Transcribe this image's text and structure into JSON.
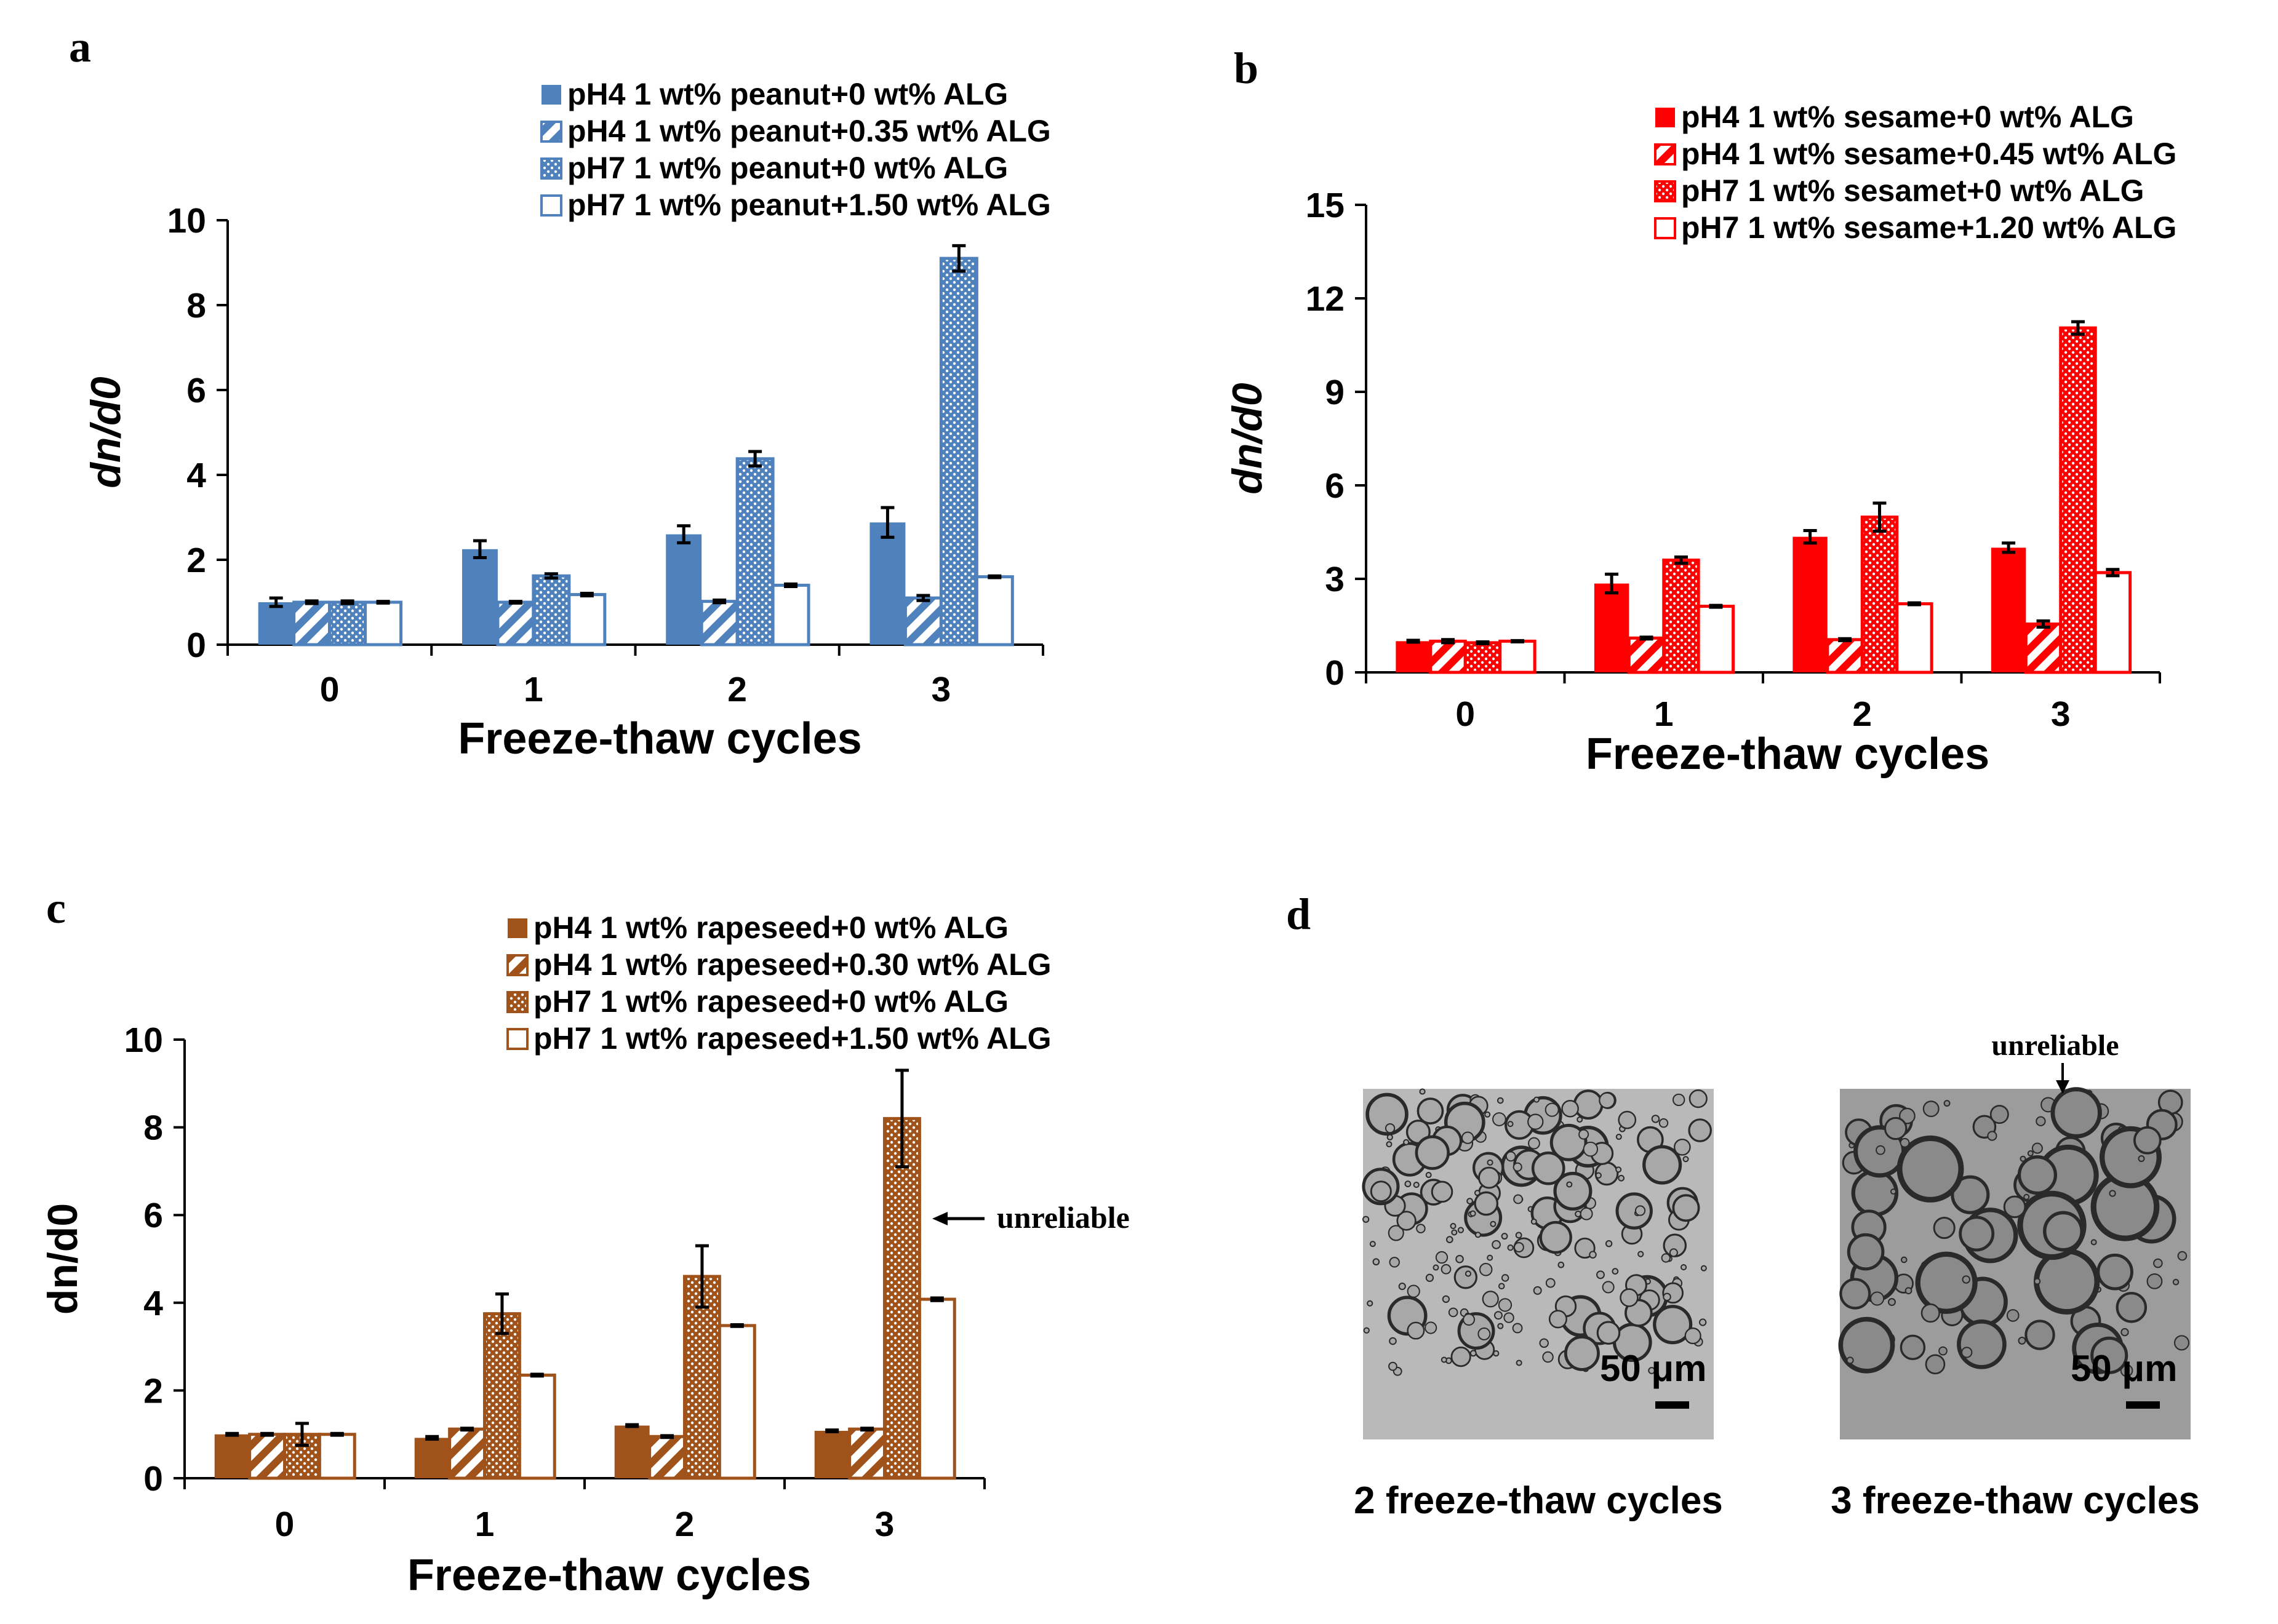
{
  "chart_data": [
    {
      "panel": "a",
      "type": "bar",
      "title": "",
      "xlabel": "Freeze-thaw  cycles",
      "ylabel": "dn/d0",
      "ylim": [
        0,
        10
      ],
      "yticks": [
        "0",
        "2",
        "4",
        "6",
        "8",
        "10"
      ],
      "categories": [
        "0",
        "1",
        "2",
        "3"
      ],
      "color": "#4f81bd",
      "series": [
        {
          "name": "pH4 1 wt% peanut+0 wt% ALG",
          "pattern": "solid",
          "values": [
            1.0,
            2.25,
            2.6,
            2.88
          ],
          "errors": [
            0.1,
            0.2,
            0.2,
            0.35
          ]
        },
        {
          "name": "pH4 1 wt% peanut+0.35 wt% ALG",
          "pattern": "diag",
          "values": [
            1.0,
            1.0,
            1.02,
            1.1
          ],
          "errors": [
            0.03,
            0.02,
            0.03,
            0.06
          ]
        },
        {
          "name": "pH7 1 wt% peanut+0 wt% ALG",
          "pattern": "dots",
          "values": [
            1.0,
            1.62,
            4.38,
            9.1
          ],
          "errors": [
            0.03,
            0.05,
            0.17,
            0.3
          ]
        },
        {
          "name": "pH7 1 wt% peanut+1.50 wt% ALG",
          "pattern": "hollow",
          "values": [
            1.0,
            1.18,
            1.4,
            1.6
          ],
          "errors": [
            0.02,
            0.03,
            0.03,
            0.02
          ]
        }
      ]
    },
    {
      "panel": "b",
      "type": "bar",
      "title": "",
      "xlabel": "Freeze-thaw  cycles",
      "ylabel": "dn/d0",
      "ylim": [
        0,
        15
      ],
      "yticks": [
        "0",
        "3",
        "6",
        "9",
        "12",
        "15"
      ],
      "categories": [
        "0",
        "1",
        "2",
        "3"
      ],
      "color": "#ff0000",
      "series": [
        {
          "name": "pH4 1 wt% sesame+0 wt% ALG",
          "pattern": "solid",
          "values": [
            1.0,
            2.85,
            4.35,
            4.0
          ],
          "errors": [
            0.03,
            0.3,
            0.2,
            0.15
          ]
        },
        {
          "name": "pH4 1 wt% sesame+0.45 wt% ALG",
          "pattern": "diag",
          "values": [
            1.0,
            1.1,
            1.05,
            1.55
          ],
          "errors": [
            0.05,
            0.03,
            0.03,
            0.1
          ]
        },
        {
          "name": "pH7 1 wt% sesamet+0 wt% ALG",
          "pattern": "dots",
          "values": [
            0.95,
            3.6,
            4.98,
            11.05
          ],
          "errors": [
            0.03,
            0.1,
            0.45,
            0.2
          ]
        },
        {
          "name": "pH7 1 wt% sesame+1.20 wt% ALG",
          "pattern": "hollow",
          "values": [
            1.0,
            2.12,
            2.2,
            3.2
          ],
          "errors": [
            0.02,
            0.03,
            0.03,
            0.1
          ]
        }
      ]
    },
    {
      "panel": "c",
      "type": "bar",
      "title": "",
      "xlabel": "Freeze-thaw  cycles",
      "ylabel": "dn/d0",
      "ylim": [
        0,
        10
      ],
      "yticks": [
        "0",
        "2",
        "4",
        "6",
        "8",
        "10"
      ],
      "categories": [
        "0",
        "1",
        "2",
        "3"
      ],
      "color": "#a0521b",
      "series": [
        {
          "name": "pH4 1 wt% rapeseed+0 wt% ALG",
          "pattern": "solid",
          "values": [
            1.0,
            0.92,
            1.2,
            1.08
          ],
          "errors": [
            0.02,
            0.03,
            0.02,
            0.02
          ]
        },
        {
          "name": "pH4 1 wt% rapeseed+0.30 wt% ALG",
          "pattern": "diag",
          "values": [
            1.0,
            1.12,
            0.95,
            1.12
          ],
          "errors": [
            0.02,
            0.02,
            0.02,
            0.02
          ]
        },
        {
          "name": "pH7 1 wt% rapeseed+0 wt% ALG",
          "pattern": "dots",
          "values": [
            1.0,
            3.75,
            4.6,
            8.2
          ],
          "errors": [
            0.25,
            0.45,
            0.7,
            1.1
          ]
        },
        {
          "name": "pH7 1 wt% rapeseed+1.50 wt% ALG",
          "pattern": "hollow",
          "values": [
            1.0,
            2.35,
            3.48,
            4.08
          ],
          "errors": [
            0.02,
            0.02,
            0.02,
            0.03
          ]
        }
      ]
    }
  ],
  "panels": {
    "a": {
      "letter": "a"
    },
    "b": {
      "letter": "b"
    },
    "c": {
      "letter": "c",
      "annotation": "unreliable"
    },
    "d": {
      "letter": "d",
      "annotation": "unreliable",
      "images": [
        {
          "caption": "2 freeze-thaw cycles",
          "scale_label": "50 μm"
        },
        {
          "caption": "3 freeze-thaw cycles",
          "scale_label": "50 μm"
        }
      ]
    }
  }
}
